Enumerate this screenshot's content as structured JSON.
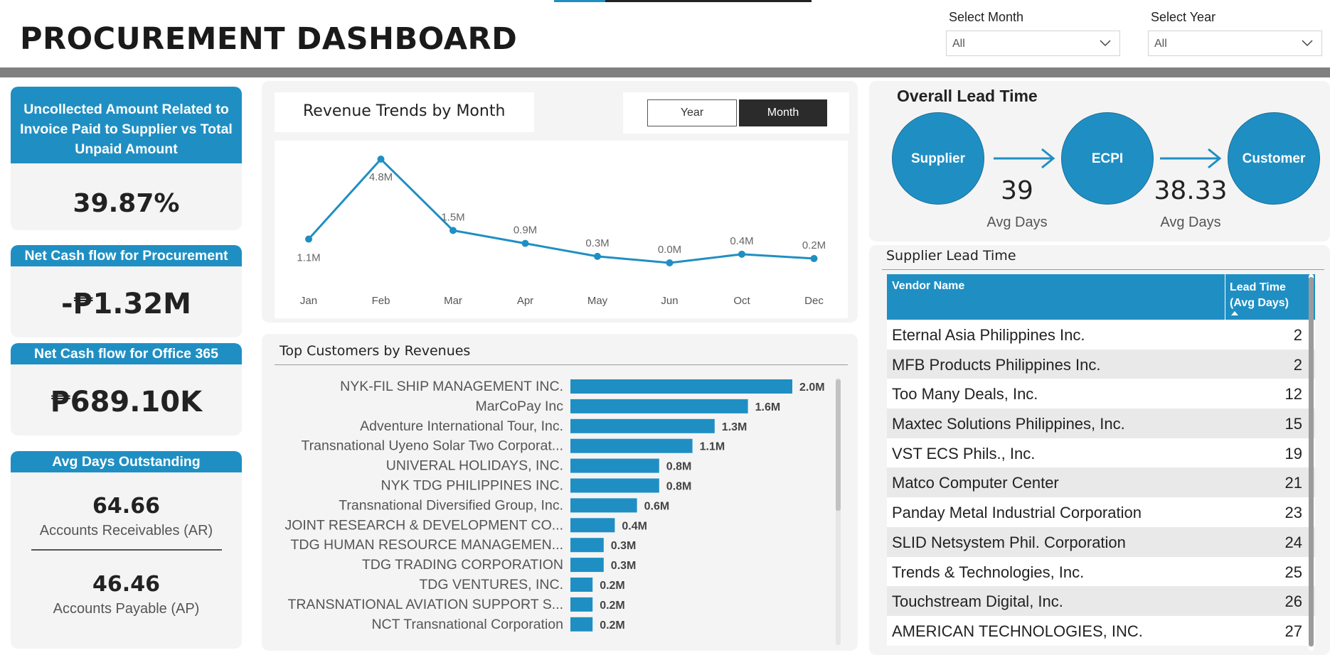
{
  "header": {
    "title": "PROCUREMENT DASHBOARD",
    "filters": [
      {
        "label": "Select Month",
        "value": "All"
      },
      {
        "label": "Select Year",
        "value": "All"
      }
    ]
  },
  "kpis": {
    "uncollected": {
      "title": "Uncollected Amount Related to Invoice Paid to Supplier vs Total Unpaid Amount",
      "value": "39.87%"
    },
    "procurement": {
      "title": "Net Cash flow for Procurement",
      "value": "-₱1.32M"
    },
    "office365": {
      "title": "Net Cash flow for Office 365",
      "value": "₱689.10K"
    },
    "days_outstanding": {
      "title": "Avg Days Outstanding",
      "ar_value": "64.66",
      "ar_label": "Accounts Receivables (AR)",
      "ap_value": "46.46",
      "ap_label": "Accounts Payable (AP)"
    }
  },
  "revenue_chart": {
    "title": "Revenue Trends by Month",
    "toggle": {
      "year": "Year",
      "month": "Month",
      "selected": "Month"
    }
  },
  "customers_chart": {
    "title": "Top Customers by Revenues"
  },
  "lead_time": {
    "title": "Overall Lead Time",
    "nodes": [
      "Supplier",
      "ECPI",
      "Customer"
    ],
    "segments": [
      {
        "value": "39",
        "label": "Avg Days"
      },
      {
        "value": "38.33",
        "label": "Avg Days"
      }
    ]
  },
  "supplier_table": {
    "title": "Supplier Lead Time",
    "col_vendor": "Vendor Name",
    "col_lead": "Lead Time\n(Avg Days)",
    "col_lead_1": "Lead Time",
    "col_lead_2": "(Avg Days)",
    "rows": [
      {
        "vendor": "Eternal Asia Philippines Inc.",
        "days": "2"
      },
      {
        "vendor": "MFB Products Philippines Inc.",
        "days": "2"
      },
      {
        "vendor": "Too Many Deals, Inc.",
        "days": "12"
      },
      {
        "vendor": "Maxtec Solutions Philippines, Inc.",
        "days": "15"
      },
      {
        "vendor": "VST ECS Phils., Inc.",
        "days": "19"
      },
      {
        "vendor": "Matco Computer Center",
        "days": "21"
      },
      {
        "vendor": "Panday Metal Industrial Corporation",
        "days": "23"
      },
      {
        "vendor": "SLID Netsystem Phil. Corporation",
        "days": "24"
      },
      {
        "vendor": "Trends & Technologies, Inc.",
        "days": "25"
      },
      {
        "vendor": "Touchstream Digital, Inc.",
        "days": "26"
      },
      {
        "vendor": "AMERICAN TECHNOLOGIES, INC.",
        "days": "27"
      }
    ]
  },
  "colors": {
    "accent": "#1f8fc3",
    "dark": "#2b2b2b",
    "panel": "#f4f4f4"
  },
  "chart_data": [
    {
      "type": "line",
      "title": "Revenue Trends by Month",
      "categories": [
        "Jan",
        "Feb",
        "Mar",
        "Apr",
        "May",
        "Jun",
        "Oct",
        "Dec"
      ],
      "values": [
        1.1,
        4.8,
        1.5,
        0.9,
        0.3,
        0.0,
        0.4,
        0.2
      ],
      "labels": [
        "1.1M",
        "4.8M",
        "1.5M",
        "0.9M",
        "0.3M",
        "0.0M",
        "0.4M",
        "0.2M"
      ],
      "unit": "M",
      "grid": false
    },
    {
      "type": "bar",
      "orientation": "horizontal",
      "title": "Top Customers by Revenues",
      "categories": [
        "NYK-FIL SHIP MANAGEMENT INC.",
        "MarCoPay Inc",
        "Adventure International Tour, Inc.",
        "Transnational Uyeno Solar Two Corporat...",
        "UNIVERAL HOLIDAYS, INC.",
        "NYK TDG PHILIPPINES INC.",
        "Transnational Diversified Group, Inc.",
        "JOINT RESEARCH & DEVELOPMENT CO...",
        "TDG HUMAN RESOURCE MANAGEMEN...",
        "TDG TRADING CORPORATION",
        "TDG VENTURES, INC.",
        "TRANSNATIONAL AVIATION SUPPORT S...",
        "NCT Transnational Corporation"
      ],
      "values": [
        2.0,
        1.6,
        1.3,
        1.1,
        0.8,
        0.8,
        0.6,
        0.4,
        0.3,
        0.3,
        0.2,
        0.2,
        0.2
      ],
      "labels": [
        "2.0M",
        "1.6M",
        "1.3M",
        "1.1M",
        "0.8M",
        "0.8M",
        "0.6M",
        "0.4M",
        "0.3M",
        "0.3M",
        "0.2M",
        "0.2M",
        "0.2M"
      ],
      "unit": "M",
      "grid": false
    }
  ]
}
